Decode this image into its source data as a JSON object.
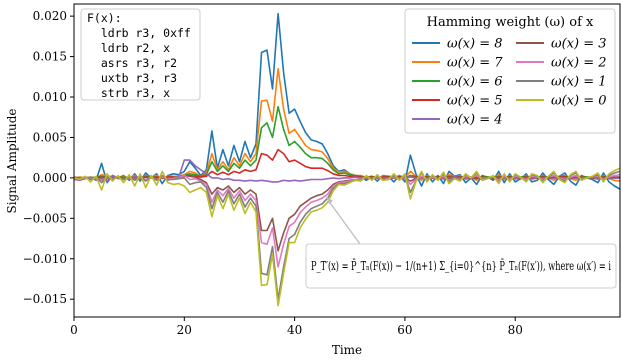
{
  "chart_data": {
    "type": "line",
    "xlabel": "Time",
    "ylabel": "Signal Amplitude",
    "xlim": [
      0,
      99
    ],
    "ylim": [
      -0.0172,
      0.0215
    ],
    "x_ticks": [
      0,
      20,
      40,
      60,
      80
    ],
    "y_ticks": [
      -0.015,
      -0.01,
      -0.005,
      0.0,
      0.005,
      0.01,
      0.015,
      0.02
    ],
    "y_tick_labels": [
      "−0.015",
      "−0.010",
      "−0.005",
      "0.000",
      "0.005",
      "0.010",
      "0.015",
      "0.020"
    ],
    "x_tick_labels": [
      "0",
      "20",
      "40",
      "60",
      "80"
    ],
    "code_box": {
      "lines": [
        "F(x):",
        "  ldrb r3, 0xff",
        "  ldrb r2, x",
        "  asrs r3, r2",
        "  uxtb r3, r3",
        "  strb r3, x"
      ]
    },
    "legend": {
      "title": "Hamming weight (ω) of x",
      "placement": "top-right",
      "entries": [
        "ω(x) = 8",
        "ω(x) = 7",
        "ω(x) = 6",
        "ω(x) = 5",
        "ω(x) = 4",
        "ω(x) = 3",
        "ω(x) = 2",
        "ω(x) = 1",
        "ω(x) = 0"
      ]
    },
    "annotation": {
      "text": "P_T′(x) = P̄_Tₙ(F(x)) − 1/(n+1) Σ_{i=0}^{n} P̄_Tₙ(F(x′)), where ω(x′) = i",
      "arrow_target_x": 44,
      "arrow_target_y": -0.0035
    },
    "colors": [
      "#1f77b4",
      "#ff7f0e",
      "#2ca02c",
      "#d62728",
      "#9467bd",
      "#8c564b",
      "#e377c2",
      "#7f7f7f",
      "#bcbd22"
    ],
    "series": [
      {
        "name": "ω(x) = 8",
        "color": "#1f77b4",
        "values": [
          0.0001,
          0.0,
          -0.0001,
          0.0001,
          -0.0003,
          0.0018,
          -0.0006,
          0.0003,
          0.0,
          0.0003,
          -0.0003,
          0.0005,
          -0.0004,
          0.0006,
          0.0,
          0.0005,
          -0.0007,
          0.0003,
          0.0005,
          0.0004,
          0.0008,
          0.002,
          0.0012,
          0.0003,
          0.001,
          0.0058,
          0.0012,
          0.0035,
          0.0015,
          0.004,
          0.002,
          0.0045,
          0.0025,
          0.0042,
          0.0155,
          0.0158,
          0.011,
          0.0203,
          0.013,
          0.008,
          0.0085,
          0.007,
          0.0056,
          0.0047,
          0.0045,
          0.0042,
          0.003,
          0.0015,
          0.0008,
          0.001,
          0.0005,
          0.0003,
          0.0002,
          -0.0003,
          0.0002,
          -0.0004,
          0.0003,
          0.0002,
          -0.0005,
          0.0003,
          -0.0005,
          0.0028,
          0.0005,
          -0.001,
          0.0005,
          -0.0005,
          0.0003,
          -0.0007,
          0.0008,
          0.0002,
          0.0004,
          -0.0006,
          0.0,
          -0.0008,
          0.0003,
          0.0001,
          -0.0003,
          0.0008,
          -0.0006,
          0.0005,
          -0.0005,
          -0.0001,
          0.0005,
          -0.0005,
          -0.0003,
          0.0006,
          -0.0002,
          -0.0008,
          0.0002,
          0.0006,
          -0.0004,
          -0.0009,
          0.0003,
          0.0,
          -0.0002,
          -0.0006,
          0.0006,
          -0.0005,
          -0.001,
          -0.0014
        ]
      },
      {
        "name": "ω(x) = 7",
        "color": "#ff7f0e",
        "values": [
          0.0,
          0.0001,
          0.0,
          0.0001,
          0.0,
          0.0004,
          0.0002,
          0.0002,
          0.0001,
          0.0002,
          0.0,
          0.0003,
          -0.0001,
          0.0003,
          0.0001,
          0.0003,
          -0.0001,
          0.0002,
          0.0002,
          0.0002,
          0.0004,
          0.0008,
          0.0006,
          0.0002,
          0.0006,
          0.003,
          0.001,
          0.002,
          0.001,
          0.0025,
          0.0015,
          0.003,
          0.002,
          0.003,
          0.0095,
          0.0096,
          0.007,
          0.0135,
          0.0085,
          0.0055,
          0.006,
          0.005,
          0.004,
          0.0035,
          0.0034,
          0.0032,
          0.0024,
          0.0012,
          0.0007,
          0.0008,
          0.0005,
          0.0003,
          0.0003,
          0.0,
          0.0002,
          0.0,
          0.0002,
          0.0002,
          0.0,
          0.0003,
          0.0,
          0.0008,
          0.0002,
          -0.0003,
          0.0003,
          0.0,
          0.0002,
          -0.0002,
          0.0004,
          0.0002,
          0.0003,
          -0.0002,
          0.0001,
          -0.0003,
          0.0002,
          0.0001,
          0.0,
          0.0004,
          -0.0002,
          0.0003,
          -0.0002,
          0.0001,
          0.0003,
          -0.0002,
          0.0,
          0.0003,
          0.0,
          -0.0003,
          0.0002,
          0.0003,
          -0.0001,
          -0.0003,
          0.0002,
          0.0001,
          0.0,
          -0.0002,
          0.0003,
          -0.0001,
          -0.0003,
          -0.0004
        ]
      },
      {
        "name": "ω(x) = 6",
        "color": "#2ca02c",
        "values": [
          0.0,
          0.0,
          0.0001,
          0.0,
          0.0001,
          0.0002,
          0.0001,
          0.0001,
          0.0001,
          0.0001,
          0.0,
          0.0001,
          0.0,
          0.0002,
          0.0001,
          0.0001,
          0.0,
          0.0001,
          0.0001,
          0.0001,
          0.0003,
          0.0005,
          0.0004,
          0.0002,
          0.0004,
          0.002,
          0.0008,
          0.0015,
          0.0008,
          0.0018,
          0.0012,
          0.0022,
          0.0015,
          0.0022,
          0.0062,
          0.0068,
          0.005,
          0.0088,
          0.006,
          0.004,
          0.0045,
          0.0038,
          0.003,
          0.0025,
          0.0025,
          0.0024,
          0.0018,
          0.001,
          0.0005,
          0.0006,
          0.0004,
          0.0003,
          0.0002,
          0.0001,
          0.0002,
          0.0,
          0.0001,
          0.0002,
          0.0001,
          0.0002,
          0.0,
          0.0003,
          0.0002,
          0.0,
          0.0002,
          0.0001,
          0.0002,
          0.0,
          0.0002,
          0.0002,
          0.0002,
          0.0,
          0.0001,
          -0.0001,
          0.0002,
          0.0001,
          0.0001,
          0.0002,
          0.0,
          0.0002,
          0.0,
          0.0001,
          0.0002,
          0.0,
          0.0001,
          0.0002,
          0.0001,
          0.0,
          0.0002,
          0.0002,
          0.0001,
          0.0,
          0.0002,
          0.0001,
          0.0001,
          0.0,
          0.0002,
          0.0001,
          0.0,
          0.0
        ]
      },
      {
        "name": "ω(x) = 5",
        "color": "#d62728",
        "values": [
          0.0,
          0.0,
          0.0,
          0.0,
          0.0,
          0.0001,
          0.0,
          0.0,
          0.0001,
          0.0,
          0.0,
          0.0001,
          0.0,
          0.0001,
          0.0,
          0.0001,
          0.0,
          0.0001,
          0.0001,
          0.0,
          0.0002,
          0.0003,
          0.0002,
          0.0001,
          0.0002,
          0.0008,
          0.0004,
          0.0007,
          0.0004,
          0.0008,
          0.0006,
          0.001,
          0.0008,
          0.001,
          0.003,
          0.0028,
          0.0022,
          0.0035,
          0.003,
          0.002,
          0.0022,
          0.0018,
          0.0014,
          0.0012,
          0.0012,
          0.0012,
          0.0009,
          0.0005,
          0.0003,
          0.0003,
          0.0002,
          0.0002,
          0.0001,
          0.0001,
          0.0001,
          0.0,
          0.0001,
          0.0001,
          0.0,
          0.0001,
          0.0,
          0.0001,
          0.0001,
          0.0,
          0.0001,
          0.0,
          0.0001,
          0.0,
          0.0001,
          0.0001,
          0.0001,
          0.0,
          0.0,
          0.0,
          0.0001,
          0.0,
          0.0,
          0.0001,
          0.0,
          0.0001,
          0.0,
          0.0,
          0.0001,
          0.0,
          0.0,
          0.0001,
          0.0,
          0.0,
          0.0001,
          0.0001,
          0.0,
          0.0,
          0.0001,
          0.0,
          0.0,
          0.0,
          0.0001,
          0.0,
          0.0,
          0.0
        ]
      },
      {
        "name": "ω(x) = 4",
        "color": "#9467bd",
        "values": [
          -0.0002,
          -0.0003,
          -0.0001,
          0.0001,
          -0.0003,
          0.0,
          -0.0004,
          0.0003,
          -0.0001,
          0.0,
          -0.0002,
          0.0002,
          0.0,
          -0.0003,
          0.0002,
          -0.0002,
          0.0001,
          -0.0003,
          0.0,
          0.0001,
          0.0022,
          0.0022,
          0.0015,
          0.001,
          0.0005,
          0.0,
          0.0,
          -0.0002,
          -0.0001,
          -0.0003,
          -0.0003,
          -0.0004,
          -0.0003,
          -0.0004,
          -0.0003,
          -0.0004,
          -0.0005,
          -0.0005,
          -0.0003,
          -0.0004,
          -0.0003,
          -0.0004,
          -0.0003,
          -0.0002,
          -0.0002,
          -0.0002,
          -0.0001,
          0.0,
          -0.0001,
          0.0,
          0.0,
          0.0001,
          0.0,
          0.0001,
          0.0,
          0.0001,
          0.0,
          0.0,
          0.0001,
          0.0,
          0.0,
          0.0001,
          0.0,
          0.0,
          0.0,
          0.0001,
          0.0,
          0.0,
          0.0,
          0.0001,
          0.0,
          0.0,
          0.0,
          0.0001,
          0.0,
          0.0,
          0.0,
          0.0,
          0.0,
          0.0,
          0.0,
          0.0,
          0.0,
          0.0,
          0.0,
          0.0,
          0.0,
          0.0,
          0.0,
          0.0,
          0.0,
          0.0,
          0.0,
          0.0,
          0.0,
          0.0,
          0.0,
          0.0,
          0.0,
          0.0
        ]
      },
      {
        "name": "ω(x) = 3",
        "color": "#8c564b",
        "values": [
          0.0,
          -0.0001,
          0.0,
          -0.0001,
          0.0,
          -0.0002,
          0.0,
          -0.0001,
          0.0,
          -0.0001,
          0.0,
          -0.0001,
          0.0,
          -0.0002,
          0.0,
          -0.0001,
          0.0,
          -0.0001,
          -0.0001,
          0.0,
          0.0003,
          0.0002,
          0.0001,
          -0.0002,
          -0.0006,
          -0.002,
          -0.0012,
          -0.0015,
          -0.001,
          -0.0018,
          -0.0012,
          -0.002,
          -0.0015,
          -0.002,
          -0.0065,
          -0.0065,
          -0.005,
          -0.009,
          -0.0068,
          -0.005,
          -0.0045,
          -0.0035,
          -0.003,
          -0.0025,
          -0.0022,
          -0.002,
          -0.0015,
          -0.0008,
          -0.0005,
          -0.0004,
          -0.0003,
          -0.0002,
          -0.0002,
          0.0,
          -0.0001,
          0.0,
          -0.0001,
          -0.0001,
          0.0,
          -0.0001,
          0.0,
          -0.0004,
          -0.0001,
          0.0001,
          -0.0001,
          0.0,
          -0.0001,
          0.0001,
          -0.0001,
          0.0,
          -0.0001,
          0.0001,
          0.0,
          0.0001,
          -0.0001,
          0.0,
          0.0,
          -0.0001,
          0.0001,
          -0.0001,
          0.0001,
          0.0,
          -0.0001,
          0.0001,
          0.0,
          -0.0001,
          0.0,
          0.0001,
          0.0,
          -0.0001,
          0.0,
          0.0001,
          0.0,
          0.0,
          0.0,
          0.0001,
          -0.0001,
          0.0,
          0.0001,
          0.0001
        ]
      },
      {
        "name": "ω(x) = 2",
        "color": "#e377c2",
        "values": [
          0.0,
          -0.0001,
          0.0,
          -0.0001,
          0.0,
          -0.0003,
          0.0001,
          -0.0001,
          0.0,
          -0.0002,
          0.0001,
          -0.0002,
          0.0001,
          -0.0002,
          0.0,
          -0.0002,
          0.0001,
          -0.0001,
          -0.0001,
          0.0,
          0.0003,
          -0.0002,
          -0.0001,
          -0.0004,
          -0.0008,
          -0.003,
          -0.0015,
          -0.0022,
          -0.0013,
          -0.0025,
          -0.0016,
          -0.0028,
          -0.002,
          -0.0028,
          -0.008,
          -0.0082,
          -0.0062,
          -0.011,
          -0.0082,
          -0.006,
          -0.0055,
          -0.0043,
          -0.0036,
          -0.003,
          -0.0028,
          -0.0025,
          -0.002,
          -0.001,
          -0.0006,
          -0.0005,
          -0.0004,
          -0.0002,
          -0.0002,
          0.0001,
          -0.0002,
          0.0001,
          -0.0002,
          -0.0001,
          0.0001,
          -0.0002,
          0.0001,
          -0.0008,
          -0.0002,
          0.0002,
          -0.0002,
          0.0001,
          -0.0002,
          0.0002,
          -0.0003,
          0.0,
          -0.0002,
          0.0002,
          0.0,
          0.0003,
          -0.0001,
          0.0,
          0.0001,
          -0.0003,
          0.0002,
          -0.0002,
          0.0002,
          0.0,
          -0.0002,
          0.0002,
          0.0001,
          -0.0002,
          0.0001,
          0.0003,
          0.0,
          -0.0002,
          0.0001,
          0.0003,
          -0.0001,
          0.0,
          0.0001,
          0.0002,
          -0.0002,
          0.0001,
          0.0003,
          0.0004
        ]
      },
      {
        "name": "ω(x) = 1",
        "color": "#7f7f7f",
        "values": [
          0.0,
          -0.0001,
          0.0001,
          -0.0002,
          0.0001,
          -0.0006,
          0.0002,
          -0.0002,
          0.0001,
          -0.0002,
          0.0002,
          -0.0003,
          0.0002,
          -0.0004,
          0.0001,
          -0.0003,
          0.0003,
          -0.0002,
          -0.0002,
          -0.0001,
          0.0,
          -0.0008,
          -0.0006,
          -0.0005,
          -0.0012,
          -0.0038,
          -0.0018,
          -0.003,
          -0.0016,
          -0.0032,
          -0.002,
          -0.0036,
          -0.0025,
          -0.0035,
          -0.0118,
          -0.012,
          -0.0085,
          -0.015,
          -0.011,
          -0.0075,
          -0.007,
          -0.0055,
          -0.0045,
          -0.0038,
          -0.0035,
          -0.0032,
          -0.0025,
          -0.0013,
          -0.0007,
          -0.0007,
          -0.0005,
          -0.0003,
          -0.0003,
          0.0002,
          -0.0002,
          0.0002,
          -0.0002,
          -0.0002,
          0.0003,
          -0.0002,
          0.0003,
          -0.0018,
          -0.0004,
          0.0006,
          -0.0004,
          0.0003,
          -0.0003,
          0.0005,
          -0.0005,
          0.0,
          -0.0003,
          0.0004,
          0.0,
          0.0006,
          -0.0002,
          0.0,
          0.0002,
          -0.0006,
          0.0004,
          -0.0004,
          0.0004,
          0.0,
          -0.0004,
          0.0004,
          0.0002,
          -0.0004,
          0.0001,
          0.0006,
          -0.0001,
          -0.0004,
          0.0003,
          0.0006,
          -0.0002,
          0.0,
          0.0001,
          0.0004,
          -0.0004,
          0.0003,
          0.0006,
          0.0008
        ]
      },
      {
        "name": "ω(x) = 0",
        "color": "#bcbd22",
        "values": [
          0.0,
          -0.0002,
          0.0002,
          -0.0005,
          0.0002,
          -0.0015,
          0.0005,
          -0.0004,
          0.0003,
          -0.0006,
          0.0004,
          -0.001,
          0.0005,
          -0.0012,
          0.0003,
          -0.0009,
          0.0008,
          -0.0006,
          -0.0008,
          -0.0007,
          -0.001,
          -0.0018,
          -0.0015,
          -0.0012,
          -0.0018,
          -0.0048,
          -0.0022,
          -0.0038,
          -0.002,
          -0.004,
          -0.0025,
          -0.0044,
          -0.003,
          -0.0042,
          -0.0133,
          -0.0132,
          -0.0095,
          -0.0158,
          -0.0118,
          -0.008,
          -0.008,
          -0.0062,
          -0.0051,
          -0.0042,
          -0.004,
          -0.0037,
          -0.003,
          -0.0016,
          -0.0008,
          -0.0009,
          -0.0006,
          -0.0003,
          -0.0004,
          0.0003,
          -0.0003,
          0.0004,
          -0.0003,
          -0.0002,
          0.0005,
          -0.0003,
          0.0005,
          -0.0026,
          -0.0005,
          0.0008,
          -0.0005,
          0.0004,
          -0.0003,
          0.0007,
          -0.0007,
          -0.0001,
          -0.0004,
          0.0005,
          0.0,
          0.0008,
          -0.0003,
          -0.0001,
          0.0003,
          -0.0007,
          0.0005,
          -0.0005,
          0.0005,
          0.0001,
          -0.0005,
          0.0005,
          0.0003,
          -0.0006,
          0.0002,
          0.0008,
          -0.0002,
          -0.0006,
          0.0004,
          0.0008,
          -0.0003,
          0.0,
          0.0002,
          0.0006,
          -0.0005,
          0.0005,
          0.0009,
          0.0012
        ]
      }
    ]
  }
}
